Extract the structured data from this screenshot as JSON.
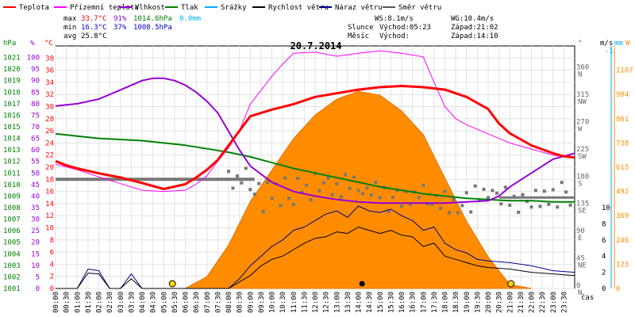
{
  "legend": [
    {
      "key": "teplota",
      "label": "Teplota",
      "color": "#ff0000"
    },
    {
      "key": "prizemni",
      "label": "Přízemní teplota",
      "color": "#ff00ff"
    },
    {
      "key": "vlhkost",
      "label": "Vlhkost",
      "color": "#9400d3"
    },
    {
      "key": "tlak",
      "label": "Tlak",
      "color": "#008000"
    },
    {
      "key": "srazky",
      "label": "Srážky",
      "color": "#00aaff"
    },
    {
      "key": "rychlost",
      "label": "Rychlost větru",
      "color": "#000000"
    },
    {
      "key": "naraz",
      "label": "Náraz větru",
      "color": "#00008b"
    },
    {
      "key": "smer",
      "label": "Směr větru",
      "color": "#555555"
    }
  ],
  "stats": {
    "max_label": "max",
    "max_temp": "33.7°C",
    "max_hum": "91%",
    "max_press": "1014.6hPa",
    "max_rain": "0.0mm",
    "min_label": "min",
    "min_temp": "16.3°C",
    "min_hum": "37%",
    "min_press": "1008.5hPa",
    "avg_label": "avg",
    "avg_temp": "25.8°C"
  },
  "wind_info": {
    "ws": "WS:8.1m/s",
    "wg": "WG:10.4m/s",
    "slunce": "Slunce",
    "slunce_vychod": "Východ:05:23",
    "slunce_zapad": "Západ:21:02",
    "mesic": "Měsíc",
    "mesic_vychod": "Východ:",
    "mesic_zapad": "Západ:14:10"
  },
  "date": "20.7.2014",
  "axis_units": {
    "hpa": "hPa",
    "pct": "%",
    "degc": "°C",
    "deg": "°",
    "ms": "m/s",
    "mm": "mm",
    "w": "W",
    "cas": "čas"
  },
  "left_hpa_ticks": [
    "1001",
    "1002",
    "1003",
    "1004",
    "1005",
    "1006",
    "1007",
    "1008",
    "1009",
    "1010",
    "1011",
    "1012",
    "1013",
    "1014",
    "1015",
    "1016",
    "1017",
    "1018",
    "1019",
    "1020",
    "1021"
  ],
  "left_pct_ticks": [
    "0",
    "5",
    "10",
    "15",
    "20",
    "25",
    "30",
    "35",
    "40",
    "45",
    "50",
    "55",
    "60",
    "65",
    "70",
    "75",
    "80",
    "85",
    "90",
    "95",
    "100"
  ],
  "left_temp_ticks": [
    "0",
    "2",
    "4",
    "6",
    "8",
    "10",
    "12",
    "14",
    "16",
    "18",
    "20",
    "22",
    "24",
    "26",
    "28",
    "30",
    "32",
    "34",
    "36",
    "38"
  ],
  "right_dir_ticks": [
    {
      "deg": "0",
      "lbl": "N"
    },
    {
      "deg": "45",
      "lbl": "NE"
    },
    {
      "deg": "90",
      "lbl": "E"
    },
    {
      "deg": "135",
      "lbl": "SE"
    },
    {
      "deg": "180",
      "lbl": "S"
    },
    {
      "deg": "225",
      "lbl": "SW"
    },
    {
      "deg": "270",
      "lbl": "W"
    },
    {
      "deg": "315",
      "lbl": "NW"
    },
    {
      "deg": "360",
      "lbl": "N"
    }
  ],
  "right_ms_ticks": [
    "0",
    "2",
    "4",
    "6",
    "8",
    "10"
  ],
  "right_mm_ticks": [
    "-1"
  ],
  "right_w_ticks": [
    "0",
    "123",
    "246",
    "369",
    "492",
    "615",
    "738",
    "861",
    "984",
    "1107",
    "W"
  ],
  "x_ticks": [
    "00:00",
    "00:30",
    "01:00",
    "01:30",
    "02:00",
    "02:30",
    "03:00",
    "03:30",
    "04:00",
    "04:30",
    "05:00",
    "05:30",
    "06:00",
    "06:30",
    "07:00",
    "07:30",
    "08:00",
    "08:30",
    "09:00",
    "09:30",
    "10:00",
    "10:30",
    "11:00",
    "11:30",
    "12:00",
    "12:30",
    "13:00",
    "13:30",
    "14:00",
    "14:30",
    "15:00",
    "15:30",
    "16:00",
    "16:30",
    "17:00",
    "17:30",
    "18:00",
    "18:30",
    "19:00",
    "19:30",
    "20:00",
    "20:30",
    "21:00",
    "21:30",
    "22:00",
    "22:30",
    "23:00",
    "23:30"
  ],
  "chart_data": {
    "type": "line",
    "title": "20.7.2014",
    "x_unit": "hours",
    "x_range": [
      0,
      24
    ],
    "series": [
      {
        "name": "Teplota",
        "unit": "°C",
        "color": "#ff0000",
        "x": [
          0,
          0.5,
          1,
          2,
          3,
          4,
          5,
          6,
          6.5,
          7,
          7.5,
          8,
          8.5,
          9,
          10,
          11,
          12,
          13,
          14,
          15,
          16,
          17,
          18,
          18.5,
          19,
          20,
          20.5,
          21,
          22,
          23,
          23.5,
          24
        ],
        "values": [
          21,
          20.3,
          19.8,
          19,
          18.3,
          17.4,
          16.4,
          17.2,
          18.3,
          19.6,
          21.2,
          23.6,
          26,
          28.4,
          29.5,
          30.4,
          31.6,
          32.2,
          32.8,
          33.2,
          33.4,
          33.2,
          32.8,
          32.2,
          31.6,
          29.6,
          27.2,
          25.6,
          23.6,
          22.3,
          21.8,
          21.6
        ]
      },
      {
        "name": "Přízemní teplota",
        "unit": "°C",
        "color": "#ff00ff",
        "x": [
          0,
          1,
          2,
          3,
          4,
          5,
          6,
          6.5,
          7,
          7.5,
          8,
          8.5,
          9,
          10,
          10.5,
          11,
          12,
          13,
          14,
          15,
          16,
          17,
          17.5,
          18,
          18.5,
          19,
          20,
          21,
          22,
          23,
          24
        ],
        "values": [
          20.5,
          19.6,
          18.4,
          17.3,
          16.2,
          16,
          16.2,
          17.2,
          18.6,
          21,
          23.2,
          26,
          30.4,
          35,
          37,
          38.8,
          39,
          38.3,
          38.8,
          39.2,
          38.8,
          38.2,
          34,
          30,
          28,
          27,
          25.5,
          24,
          23,
          22,
          21.5
        ]
      },
      {
        "name": "Vlhkost",
        "unit": "%",
        "color": "#9400d3",
        "x": [
          0,
          1,
          2,
          3,
          4,
          4.5,
          5,
          5.5,
          6,
          6.5,
          7,
          7.5,
          8,
          8.5,
          9,
          10,
          11,
          12,
          13,
          14,
          15,
          16,
          17,
          18,
          19,
          20,
          20.5,
          21,
          22,
          23,
          24
        ],
        "values": [
          79,
          80,
          82,
          86,
          90,
          91,
          91,
          90,
          88,
          85,
          81,
          76,
          68,
          60,
          53,
          46,
          42,
          40,
          38.5,
          37.5,
          37,
          37,
          37,
          37,
          37.5,
          38,
          40,
          44,
          50,
          56,
          58.5
        ]
      },
      {
        "name": "Tlak",
        "unit": "hPa",
        "color": "#008000",
        "x": [
          0,
          1,
          2,
          3,
          4,
          5,
          6,
          7,
          8,
          9,
          10,
          11,
          12,
          13,
          14,
          15,
          16,
          17,
          18,
          19,
          20,
          21,
          22,
          23,
          24
        ],
        "values": [
          1014.4,
          1014.2,
          1014.0,
          1013.9,
          1013.8,
          1013.6,
          1013.4,
          1013.1,
          1012.8,
          1012.4,
          1011.9,
          1011.4,
          1011.0,
          1010.6,
          1010.2,
          1009.8,
          1009.5,
          1009.2,
          1009.0,
          1008.8,
          1008.7,
          1008.6,
          1008.6,
          1008.5,
          1008.5
        ]
      },
      {
        "name": "Rychlost větru",
        "unit": "m/s",
        "color": "#000000",
        "x": [
          0,
          1,
          1.5,
          2,
          2.5,
          3,
          3.5,
          4,
          5,
          6,
          7,
          8,
          8.5,
          9,
          9.5,
          10,
          10.5,
          11,
          11.5,
          12,
          12.5,
          13,
          13.5,
          14,
          14.5,
          15,
          15.5,
          16,
          16.5,
          17,
          17.5,
          18,
          18.5,
          19,
          19.5,
          20,
          21,
          22,
          23,
          24
        ],
        "values": [
          0,
          0,
          1.9,
          1.8,
          0,
          0,
          1.2,
          0,
          0,
          0,
          0,
          0,
          0.8,
          1.6,
          2.8,
          3.6,
          4.0,
          4.8,
          5.6,
          6.2,
          6.4,
          7.0,
          6.8,
          7.6,
          7.2,
          6.8,
          7.2,
          6.6,
          6.4,
          5.2,
          5.6,
          4.0,
          3.6,
          3.2,
          2.8,
          2.6,
          2.4,
          2.0,
          1.8,
          1.6
        ]
      },
      {
        "name": "Náraz větru",
        "unit": "m/s",
        "color": "#00008b",
        "x": [
          0,
          1,
          1.5,
          2,
          2.5,
          3,
          3.5,
          4,
          5,
          6,
          7,
          8,
          8.5,
          9,
          9.5,
          10,
          10.5,
          11,
          11.5,
          12,
          12.5,
          13,
          13.5,
          14,
          14.5,
          15,
          15.5,
          16,
          16.5,
          17,
          17.5,
          18,
          18.5,
          19,
          19.5,
          20,
          21,
          22,
          23,
          24
        ],
        "values": [
          0,
          0,
          2.4,
          2.2,
          0,
          0,
          1.8,
          0,
          0,
          0,
          0,
          0,
          1.2,
          2.8,
          4.0,
          5.2,
          6.0,
          7.2,
          7.6,
          8.4,
          9.2,
          9.6,
          8.8,
          10.2,
          9.6,
          9.4,
          9.8,
          9.0,
          8.4,
          7.2,
          7.6,
          5.6,
          4.8,
          4.4,
          3.6,
          3.4,
          3.2,
          2.8,
          2.2,
          2.0
        ]
      },
      {
        "name": "Směr větru",
        "unit": "°",
        "color": "#666666",
        "x": [
          0,
          8,
          9,
          10,
          11,
          12,
          13,
          14,
          15,
          16,
          17,
          18,
          19,
          20,
          21,
          22,
          23,
          24
        ],
        "values": [
          180,
          180,
          150,
          160,
          165,
          170,
          175,
          160,
          150,
          155,
          145,
          140,
          150,
          150,
          148,
          150,
          150,
          150
        ]
      },
      {
        "name": "Sluneční záření",
        "unit": "W/m²",
        "color": "#ff8c00",
        "x": [
          6,
          7,
          8,
          9,
          10,
          11,
          12,
          13,
          14,
          15,
          16,
          17,
          18,
          19,
          20,
          21,
          22
        ],
        "values": [
          0,
          60,
          220,
          440,
          600,
          760,
          880,
          960,
          1000,
          980,
          900,
          780,
          560,
          340,
          160,
          20,
          0
        ]
      }
    ]
  }
}
